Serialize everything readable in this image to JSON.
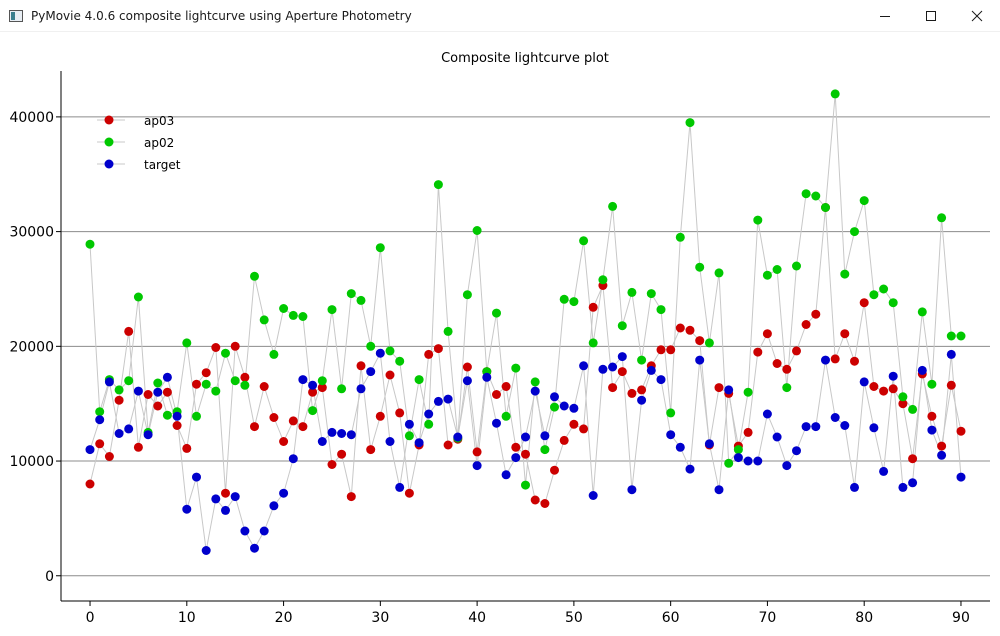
{
  "window": {
    "title": "PyMovie 4.0.6 composite lightcurve using Aperture Photometry",
    "icon": "app-window-icon",
    "controls": [
      "minimize-icon",
      "maximize-icon",
      "close-icon"
    ]
  },
  "chart_data": {
    "type": "scatter",
    "title": "Composite lightcurve plot",
    "xlabel": "",
    "ylabel": "",
    "xlim": [
      -3,
      93
    ],
    "ylim": [
      -2200,
      44000
    ],
    "x_ticks": [
      0,
      10,
      20,
      30,
      40,
      50,
      60,
      70,
      80,
      90
    ],
    "y_ticks": [
      0,
      10000,
      20000,
      30000,
      40000
    ],
    "grid": "horizontal",
    "legend_position": "top-left",
    "connecting_line_color": "#c8c8c8",
    "series": [
      {
        "name": "ap03",
        "color": "#cc0000",
        "values": [
          8000,
          11500,
          10400,
          15300,
          21300,
          11200,
          15800,
          14800,
          16000,
          13100,
          11100,
          16700,
          17700,
          19900,
          7200,
          20000,
          17300,
          13000,
          16500,
          13800,
          11700,
          13500,
          13000,
          16000,
          16400,
          9700,
          10600,
          6900,
          18300,
          11000,
          13900,
          17500,
          14200,
          7200,
          11400,
          19300,
          19800,
          11400,
          11900,
          18200,
          10800,
          17800,
          15800,
          16500,
          11200,
          10600,
          6600,
          6300,
          9200,
          11800,
          13200,
          12800,
          23400,
          25300,
          16400,
          17800,
          15900,
          16200,
          18300,
          19700,
          19700,
          21600,
          21400,
          20500,
          11400,
          16400,
          15900,
          11300,
          12500,
          19500,
          21100,
          18500,
          18000,
          19600,
          21900,
          22800,
          32100,
          18900,
          21100,
          18700,
          23800,
          16500,
          16100,
          16300,
          15000,
          10200,
          17600,
          13900,
          11300,
          16600,
          12600
        ]
      },
      {
        "name": "ap02",
        "color": "#00c800",
        "values": [
          28900,
          14300,
          17100,
          16200,
          17000,
          24300,
          12500,
          16800,
          14000,
          14300,
          20300,
          13900,
          16700,
          16100,
          19400,
          17000,
          16600,
          26100,
          22300,
          19300,
          23300,
          22700,
          22600,
          14400,
          17000,
          23200,
          16300,
          24600,
          24000,
          20000,
          28600,
          19600,
          18700,
          12200,
          17100,
          13200,
          34100,
          21300,
          12000,
          24500,
          30100,
          17800,
          22900,
          13900,
          18100,
          7900,
          16900,
          11000,
          14700,
          24100,
          23900,
          29200,
          20300,
          25800,
          32200,
          21800,
          24700,
          18800,
          24600,
          23200,
          14200,
          29500,
          39500,
          26900,
          20300,
          26400,
          9800,
          11000,
          16000,
          31000,
          26200,
          26700,
          16400,
          27000,
          33300,
          33100,
          32100,
          42000,
          26300,
          30000,
          32700,
          24500,
          25000,
          23800,
          15600,
          14500,
          23000,
          16700,
          31200,
          20900,
          20900
        ]
      },
      {
        "name": "target",
        "color": "#0000cc",
        "values": [
          11000,
          13600,
          16900,
          12400,
          12800,
          16100,
          12300,
          16000,
          17300,
          13900,
          5800,
          8600,
          2200,
          6700,
          5700,
          6900,
          3900,
          2400,
          3900,
          6100,
          7200,
          10200,
          17100,
          16600,
          11700,
          12500,
          12400,
          12300,
          16300,
          17800,
          19400,
          11700,
          7700,
          13200,
          11600,
          14100,
          15200,
          15400,
          12100,
          17000,
          9600,
          17300,
          13300,
          8800,
          10300,
          12100,
          16100,
          12200,
          15600,
          14800,
          14600,
          18300,
          7000,
          18000,
          18200,
          19100,
          7500,
          15300,
          17900,
          17100,
          12300,
          11200,
          9300,
          18800,
          11500,
          7500,
          16200,
          10300,
          10000,
          10000,
          14100,
          12100,
          9600,
          10900,
          13000,
          13000,
          18800,
          13800,
          13100,
          7700,
          16900,
          12900,
          9100,
          17400,
          7700,
          8100,
          17900,
          12700,
          10500,
          19300,
          8600
        ]
      }
    ]
  }
}
